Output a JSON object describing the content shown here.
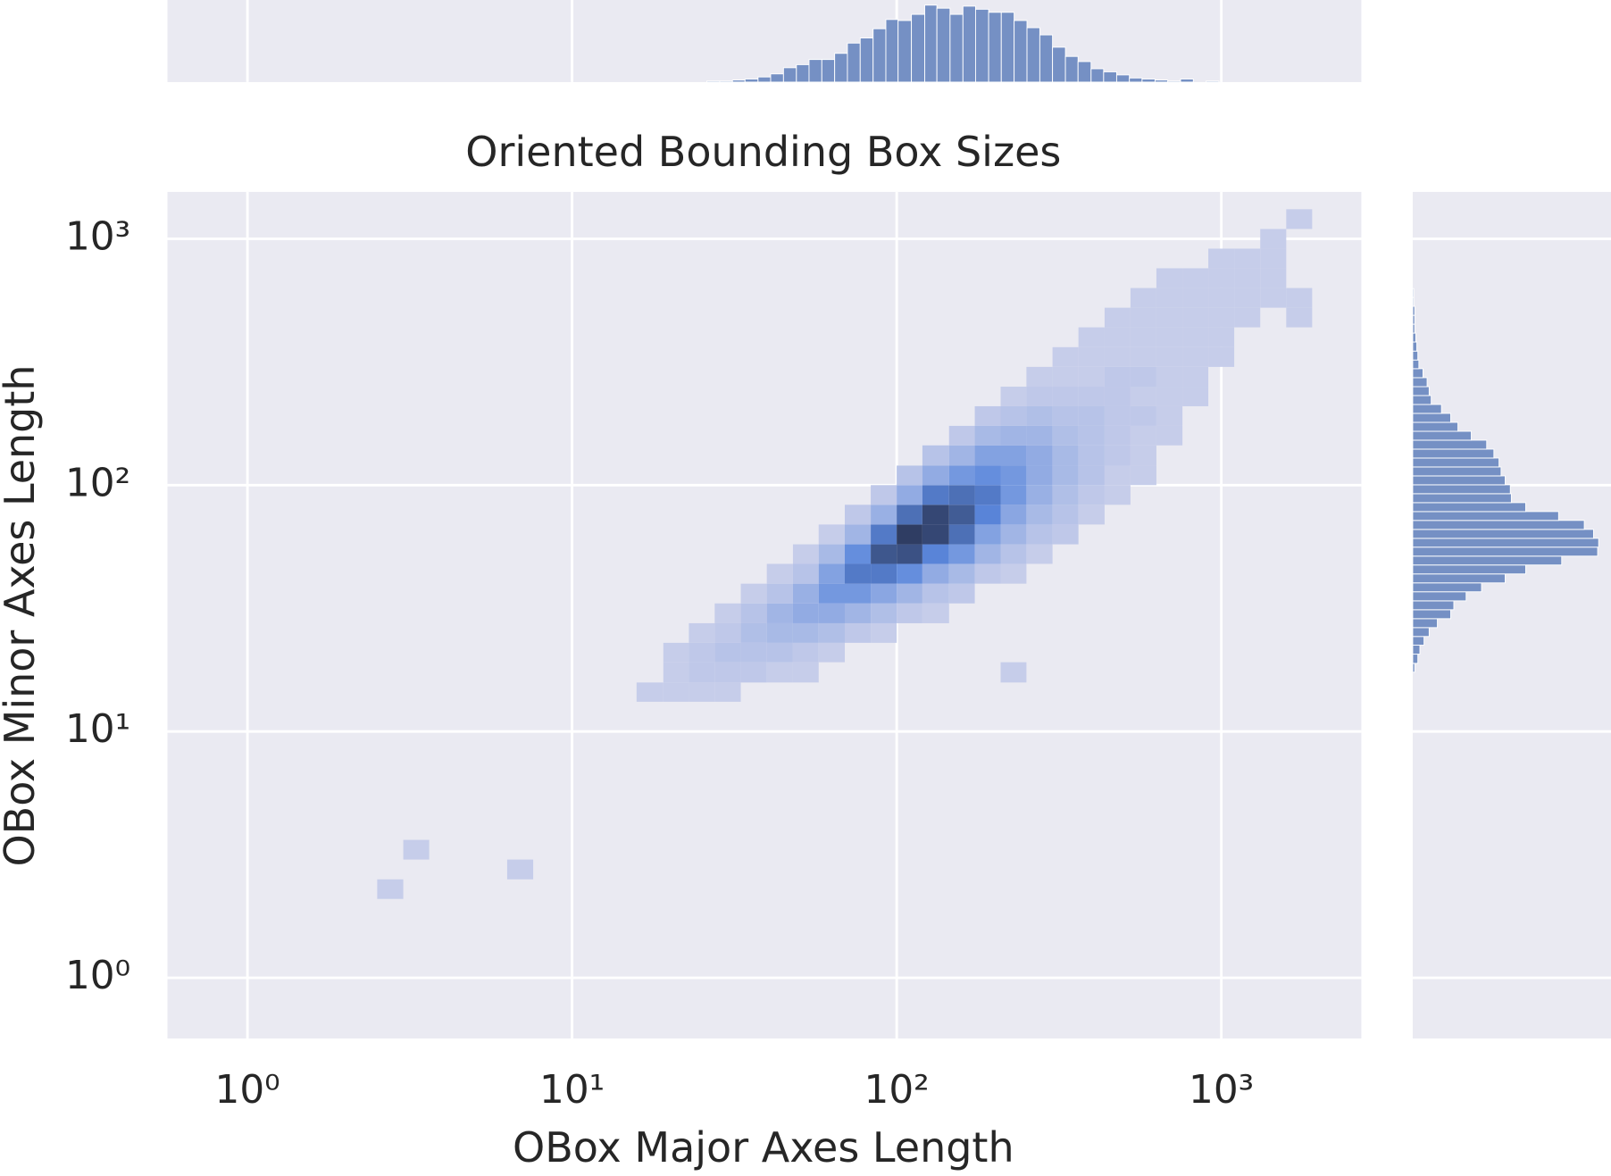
{
  "chart_data": [
    {
      "type": "histogram2d",
      "title": "Oriented Bounding Box Sizes",
      "xlabel": "OBox Major Axes Length",
      "ylabel": "OBox Minor Axes Length",
      "xscale": "log",
      "yscale": "log",
      "xlim": [
        0.567,
        2700
      ],
      "ylim": [
        0.567,
        1550
      ],
      "xticks": [
        {
          "value": 1,
          "label": "10⁰"
        },
        {
          "value": 10,
          "label": "10¹"
        },
        {
          "value": 100,
          "label": "10²"
        },
        {
          "value": 1000,
          "label": "10³"
        }
      ],
      "yticks": [
        {
          "value": 1,
          "label": "10⁰"
        },
        {
          "value": 10,
          "label": "10¹"
        },
        {
          "value": 100,
          "label": "10²"
        },
        {
          "value": 1000,
          "label": "10³"
        }
      ],
      "grid": true,
      "colormap": [
        "#c6cdea",
        "#5a87dc",
        "#2f3d63"
      ],
      "xbins": [
        2.09,
        2.51,
        3.02,
        3.63,
        4.37,
        5.25,
        6.31,
        7.59,
        9.12,
        11,
        13.2,
        15.8,
        19.1,
        22.9,
        27.5,
        33.1,
        39.8,
        47.9,
        57.5,
        69.2,
        83.2,
        100,
        120,
        145,
        174,
        209,
        251,
        302,
        363,
        437,
        525,
        631,
        759,
        912,
        1096,
        1318,
        1585,
        1905
      ],
      "ybins": [
        2.09,
        2.51,
        3.02,
        3.63,
        4.37,
        5.25,
        6.31,
        7.59,
        9.12,
        11,
        13.2,
        15.8,
        19.1,
        22.9,
        27.5,
        33.1,
        39.8,
        47.9,
        57.5,
        69.2,
        83.2,
        100,
        120,
        145,
        174,
        209,
        251,
        302,
        363,
        437,
        525,
        631,
        759,
        912,
        1096,
        1318,
        1585,
        1905
      ],
      "cells": [
        [
          2.51,
          2.09,
          1
        ],
        [
          3.02,
          3.02,
          1
        ],
        [
          6.31,
          2.51,
          1
        ],
        [
          15.8,
          13.2,
          1
        ],
        [
          19.1,
          13.2,
          1
        ],
        [
          19.1,
          15.8,
          1
        ],
        [
          19.1,
          19.1,
          1
        ],
        [
          22.9,
          13.2,
          1
        ],
        [
          22.9,
          15.8,
          2
        ],
        [
          22.9,
          19.1,
          2
        ],
        [
          22.9,
          22.9,
          1
        ],
        [
          27.5,
          13.2,
          1
        ],
        [
          27.5,
          15.8,
          2
        ],
        [
          27.5,
          19.1,
          3
        ],
        [
          27.5,
          22.9,
          2
        ],
        [
          27.5,
          27.5,
          1
        ],
        [
          33.1,
          15.8,
          2
        ],
        [
          33.1,
          19.1,
          3
        ],
        [
          33.1,
          22.9,
          4
        ],
        [
          33.1,
          27.5,
          3
        ],
        [
          33.1,
          33.1,
          1
        ],
        [
          39.8,
          15.8,
          1
        ],
        [
          39.8,
          19.1,
          3
        ],
        [
          39.8,
          22.9,
          5
        ],
        [
          39.8,
          27.5,
          6
        ],
        [
          39.8,
          33.1,
          3
        ],
        [
          39.8,
          39.8,
          1
        ],
        [
          47.9,
          15.8,
          1
        ],
        [
          47.9,
          19.1,
          2
        ],
        [
          47.9,
          22.9,
          5
        ],
        [
          47.9,
          27.5,
          8
        ],
        [
          47.9,
          33.1,
          7
        ],
        [
          47.9,
          39.8,
          3
        ],
        [
          47.9,
          47.9,
          1
        ],
        [
          57.5,
          19.1,
          1
        ],
        [
          57.5,
          22.9,
          4
        ],
        [
          57.5,
          27.5,
          8
        ],
        [
          57.5,
          33.1,
          12
        ],
        [
          57.5,
          39.8,
          10
        ],
        [
          57.5,
          47.9,
          5
        ],
        [
          57.5,
          57.5,
          1
        ],
        [
          69.2,
          22.9,
          2
        ],
        [
          69.2,
          27.5,
          6
        ],
        [
          69.2,
          33.1,
          12
        ],
        [
          69.2,
          39.8,
          18
        ],
        [
          69.2,
          47.9,
          14
        ],
        [
          69.2,
          57.5,
          6
        ],
        [
          69.2,
          69.2,
          2
        ],
        [
          83.2,
          22.9,
          1
        ],
        [
          83.2,
          27.5,
          4
        ],
        [
          83.2,
          33.1,
          9
        ],
        [
          83.2,
          39.8,
          18
        ],
        [
          83.2,
          47.9,
          25
        ],
        [
          83.2,
          57.5,
          18
        ],
        [
          83.2,
          69.2,
          7
        ],
        [
          83.2,
          83.2,
          2
        ],
        [
          100,
          27.5,
          2
        ],
        [
          100,
          33.1,
          6
        ],
        [
          100,
          39.8,
          14
        ],
        [
          100,
          47.9,
          26
        ],
        [
          100,
          57.5,
          30
        ],
        [
          100,
          69.2,
          20
        ],
        [
          100,
          83.2,
          8
        ],
        [
          100,
          100,
          3
        ],
        [
          120,
          27.5,
          1
        ],
        [
          120,
          33.1,
          3
        ],
        [
          120,
          39.8,
          8
        ],
        [
          120,
          47.9,
          16
        ],
        [
          120,
          57.5,
          28
        ],
        [
          120,
          69.2,
          28
        ],
        [
          120,
          83.2,
          18
        ],
        [
          120,
          100,
          8
        ],
        [
          120,
          120,
          3
        ],
        [
          145,
          33.1,
          2
        ],
        [
          145,
          39.8,
          5
        ],
        [
          145,
          47.9,
          12
        ],
        [
          145,
          57.5,
          20
        ],
        [
          145,
          69.2,
          24
        ],
        [
          145,
          83.2,
          20
        ],
        [
          145,
          100,
          12
        ],
        [
          145,
          120,
          6
        ],
        [
          145,
          145,
          2
        ],
        [
          174,
          39.8,
          2
        ],
        [
          174,
          47.9,
          6
        ],
        [
          174,
          57.5,
          10
        ],
        [
          174,
          69.2,
          16
        ],
        [
          174,
          83.2,
          18
        ],
        [
          174,
          100,
          14
        ],
        [
          174,
          120,
          10
        ],
        [
          174,
          145,
          5
        ],
        [
          174,
          174,
          2
        ],
        [
          209,
          15.8,
          1
        ],
        [
          209,
          39.8,
          1
        ],
        [
          209,
          47.9,
          3
        ],
        [
          209,
          57.5,
          6
        ],
        [
          209,
          69.2,
          9
        ],
        [
          209,
          83.2,
          12
        ],
        [
          209,
          100,
          12
        ],
        [
          209,
          120,
          10
        ],
        [
          209,
          145,
          6
        ],
        [
          209,
          174,
          3
        ],
        [
          209,
          209,
          1
        ],
        [
          251,
          47.9,
          1
        ],
        [
          251,
          57.5,
          3
        ],
        [
          251,
          69.2,
          5
        ],
        [
          251,
          83.2,
          7
        ],
        [
          251,
          100,
          8
        ],
        [
          251,
          120,
          8
        ],
        [
          251,
          145,
          6
        ],
        [
          251,
          174,
          4
        ],
        [
          251,
          209,
          2
        ],
        [
          251,
          251,
          1
        ],
        [
          302,
          57.5,
          2
        ],
        [
          302,
          69.2,
          3
        ],
        [
          302,
          83.2,
          4
        ],
        [
          302,
          100,
          5
        ],
        [
          302,
          120,
          5
        ],
        [
          302,
          145,
          4
        ],
        [
          302,
          174,
          3
        ],
        [
          302,
          209,
          2
        ],
        [
          302,
          251,
          1
        ],
        [
          302,
          302,
          1
        ],
        [
          363,
          69.2,
          1
        ],
        [
          363,
          83.2,
          2
        ],
        [
          363,
          100,
          3
        ],
        [
          363,
          120,
          3
        ],
        [
          363,
          145,
          3
        ],
        [
          363,
          174,
          3
        ],
        [
          363,
          209,
          2
        ],
        [
          363,
          251,
          1
        ],
        [
          363,
          302,
          1
        ],
        [
          363,
          363,
          1
        ],
        [
          437,
          83.2,
          1
        ],
        [
          437,
          100,
          1
        ],
        [
          437,
          120,
          2
        ],
        [
          437,
          145,
          2
        ],
        [
          437,
          174,
          2
        ],
        [
          437,
          209,
          2
        ],
        [
          437,
          251,
          2
        ],
        [
          437,
          302,
          1
        ],
        [
          437,
          363,
          1
        ],
        [
          437,
          437,
          1
        ],
        [
          525,
          100,
          1
        ],
        [
          525,
          120,
          1
        ],
        [
          525,
          145,
          1
        ],
        [
          525,
          174,
          2
        ],
        [
          525,
          209,
          1
        ],
        [
          525,
          251,
          2
        ],
        [
          525,
          302,
          1
        ],
        [
          525,
          363,
          1
        ],
        [
          525,
          437,
          1
        ],
        [
          525,
          525,
          1
        ],
        [
          631,
          145,
          1
        ],
        [
          631,
          174,
          1
        ],
        [
          631,
          209,
          1
        ],
        [
          631,
          251,
          1
        ],
        [
          631,
          302,
          1
        ],
        [
          631,
          363,
          1
        ],
        [
          631,
          437,
          1
        ],
        [
          631,
          525,
          1
        ],
        [
          631,
          631,
          1
        ],
        [
          759,
          209,
          1
        ],
        [
          759,
          251,
          1
        ],
        [
          759,
          302,
          1
        ],
        [
          759,
          363,
          1
        ],
        [
          759,
          437,
          1
        ],
        [
          759,
          525,
          1
        ],
        [
          759,
          631,
          1
        ],
        [
          912,
          302,
          1
        ],
        [
          912,
          363,
          1
        ],
        [
          912,
          437,
          1
        ],
        [
          912,
          525,
          1
        ],
        [
          912,
          631,
          1
        ],
        [
          912,
          759,
          1
        ],
        [
          1096,
          437,
          1
        ],
        [
          1096,
          525,
          1
        ],
        [
          1096,
          631,
          1
        ],
        [
          1096,
          759,
          1
        ],
        [
          1318,
          525,
          1
        ],
        [
          1318,
          631,
          1
        ],
        [
          1318,
          759,
          1
        ],
        [
          1318,
          912,
          1
        ],
        [
          1585,
          437,
          1
        ],
        [
          1585,
          525,
          1
        ],
        [
          1585,
          1096,
          1
        ]
      ]
    },
    {
      "type": "histogram",
      "orientation": "vertical",
      "color": "#7590c4",
      "ylim": [
        0,
        80
      ],
      "bins": [
        26,
        28.5,
        31.2,
        34.1,
        37.4,
        40.9,
        44.8,
        49.1,
        53.7,
        58.8,
        64.4,
        70.5,
        77.2,
        84.6,
        92.6,
        101,
        111,
        122,
        133,
        146,
        160,
        175,
        192,
        210,
        230,
        252,
        276,
        302,
        331,
        362,
        397,
        434,
        476,
        521,
        570,
        625,
        684,
        749,
        820,
        898,
        983
      ],
      "values": [
        1,
        1,
        2,
        3,
        5,
        8,
        14,
        17,
        22,
        22,
        28,
        38,
        43,
        52,
        61,
        60,
        66,
        75,
        72,
        66,
        74,
        71,
        68,
        68,
        60,
        53,
        46,
        34,
        25,
        20,
        13,
        10,
        7,
        4,
        3,
        2,
        1,
        3,
        0,
        1
      ]
    },
    {
      "type": "histogram",
      "orientation": "horizontal",
      "color": "#7590c4",
      "xlim": [
        0,
        193
      ],
      "bins": [
        17.4,
        18.9,
        20.6,
        22.4,
        24.3,
        26.4,
        28.7,
        31.2,
        33.9,
        36.9,
        40.1,
        43.6,
        47.4,
        51.5,
        56,
        60.8,
        66.1,
        71.9,
        78.1,
        84.9,
        92.3,
        100.3,
        109,
        118.5,
        128.8,
        140,
        152.2,
        165.4,
        179.8,
        195.5,
        212.5,
        231,
        251,
        273,
        297,
        322,
        350,
        381,
        414,
        450,
        489,
        532,
        578,
        628
      ],
      "values": [
        2,
        5,
        7,
        11,
        16,
        24,
        37,
        40,
        52,
        67,
        90,
        110,
        145,
        180,
        181,
        176,
        167,
        142,
        110,
        96,
        95,
        90,
        86,
        84,
        79,
        72,
        57,
        44,
        37,
        28,
        18,
        16,
        14,
        10,
        6,
        5,
        4,
        3,
        2,
        2,
        2,
        1,
        1
      ]
    }
  ]
}
